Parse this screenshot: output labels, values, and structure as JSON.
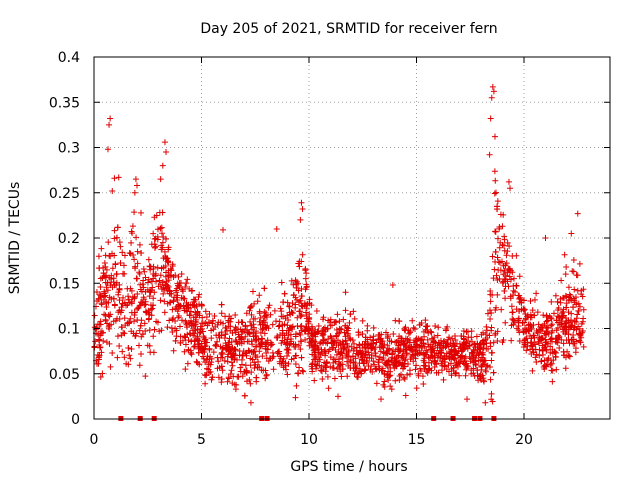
{
  "chart_data": {
    "type": "scatter",
    "title": "Day 205 of 2021, SRMTID for receiver fern",
    "xlabel": "GPS time / hours",
    "ylabel": "SRMTID / TECUs",
    "xlim": [
      0,
      24
    ],
    "ylim": [
      0,
      0.4
    ],
    "x_ticks": [
      0,
      5,
      10,
      15,
      20
    ],
    "x_tick_labels": [
      "0",
      "5",
      "10",
      "15",
      "20"
    ],
    "y_ticks": [
      0,
      0.05,
      0.1,
      0.15,
      0.2,
      0.25,
      0.3,
      0.35,
      0.4
    ],
    "y_tick_labels": [
      "0",
      "0.05",
      "0.1",
      "0.15",
      "0.2",
      "0.25",
      "0.3",
      "0.35",
      "0.4"
    ],
    "grid": true,
    "marker": "+",
    "color": "#e00000",
    "sample_seed": 205,
    "sample_count": 2600,
    "envelope": {
      "hours": [
        0.0,
        0.5,
        1.0,
        1.5,
        2.0,
        2.5,
        3.0,
        3.3,
        3.6,
        4.0,
        5.0,
        6.0,
        7.0,
        8.0,
        9.0,
        9.5,
        9.8,
        10.2,
        11.0,
        12.0,
        13.0,
        14.0,
        15.0,
        16.0,
        17.0,
        18.0,
        18.3,
        18.5,
        18.7,
        19.0,
        19.5,
        20.0,
        20.5,
        21.0,
        21.5,
        22.0,
        22.5,
        22.8
      ],
      "median": [
        0.1,
        0.13,
        0.15,
        0.12,
        0.14,
        0.12,
        0.18,
        0.17,
        0.14,
        0.12,
        0.09,
        0.08,
        0.08,
        0.09,
        0.09,
        0.11,
        0.13,
        0.08,
        0.08,
        0.075,
        0.07,
        0.07,
        0.08,
        0.075,
        0.075,
        0.07,
        0.08,
        0.1,
        0.18,
        0.17,
        0.13,
        0.11,
        0.09,
        0.085,
        0.09,
        0.11,
        0.12,
        0.11
      ],
      "spread": [
        0.035,
        0.07,
        0.07,
        0.06,
        0.07,
        0.05,
        0.08,
        0.06,
        0.05,
        0.04,
        0.035,
        0.035,
        0.04,
        0.04,
        0.04,
        0.06,
        0.06,
        0.03,
        0.03,
        0.03,
        0.025,
        0.03,
        0.03,
        0.025,
        0.025,
        0.025,
        0.04,
        0.1,
        0.1,
        0.07,
        0.04,
        0.03,
        0.03,
        0.03,
        0.04,
        0.05,
        0.045,
        0.04
      ]
    },
    "peak_points": [
      {
        "x": 0.75,
        "y": 0.332
      },
      {
        "x": 0.7,
        "y": 0.325
      },
      {
        "x": 0.65,
        "y": 0.298
      },
      {
        "x": 0.95,
        "y": 0.266
      },
      {
        "x": 1.15,
        "y": 0.267
      },
      {
        "x": 0.85,
        "y": 0.252
      },
      {
        "x": 1.95,
        "y": 0.265
      },
      {
        "x": 2.0,
        "y": 0.258
      },
      {
        "x": 1.9,
        "y": 0.25
      },
      {
        "x": 3.3,
        "y": 0.306
      },
      {
        "x": 3.35,
        "y": 0.295
      },
      {
        "x": 3.2,
        "y": 0.28
      },
      {
        "x": 3.1,
        "y": 0.265
      },
      {
        "x": 6.0,
        "y": 0.209
      },
      {
        "x": 9.65,
        "y": 0.239
      },
      {
        "x": 9.7,
        "y": 0.232
      },
      {
        "x": 9.6,
        "y": 0.22
      },
      {
        "x": 8.5,
        "y": 0.21
      },
      {
        "x": 18.55,
        "y": 0.367
      },
      {
        "x": 18.6,
        "y": 0.362
      },
      {
        "x": 18.5,
        "y": 0.355
      },
      {
        "x": 18.45,
        "y": 0.332
      },
      {
        "x": 18.65,
        "y": 0.312
      },
      {
        "x": 18.4,
        "y": 0.292
      },
      {
        "x": 19.3,
        "y": 0.262
      },
      {
        "x": 19.35,
        "y": 0.255
      },
      {
        "x": 22.5,
        "y": 0.227
      },
      {
        "x": 22.2,
        "y": 0.205
      },
      {
        "x": 21.0,
        "y": 0.2
      },
      {
        "x": 13.9,
        "y": 0.148
      },
      {
        "x": 11.7,
        "y": 0.14
      },
      {
        "x": 6.6,
        "y": 0.033
      },
      {
        "x": 7.3,
        "y": 0.018
      },
      {
        "x": 11.35,
        "y": 0.025
      },
      {
        "x": 13.35,
        "y": 0.022
      },
      {
        "x": 13.85,
        "y": 0.033
      },
      {
        "x": 14.5,
        "y": 0.026
      },
      {
        "x": 17.35,
        "y": 0.022
      },
      {
        "x": 18.2,
        "y": 0.018
      }
    ],
    "zero_markers_x": [
      1.25,
      2.15,
      2.8,
      7.8,
      8.05,
      15.8,
      16.7,
      17.7,
      17.95,
      18.6
    ]
  }
}
